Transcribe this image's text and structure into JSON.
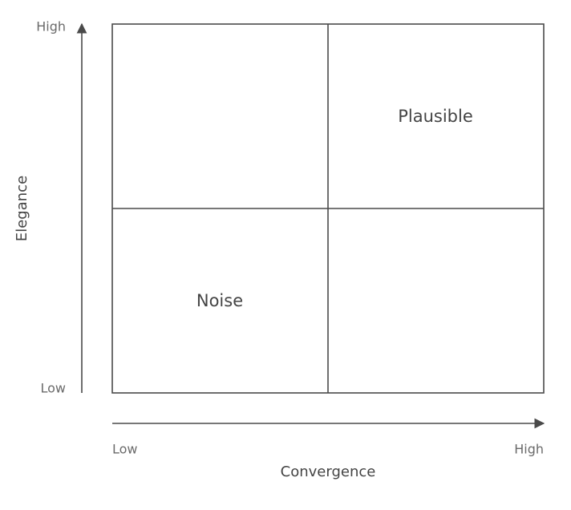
{
  "y_axis": {
    "label": "Elegance",
    "low": "Low",
    "high": "High"
  },
  "x_axis": {
    "label": "Convergence",
    "low": "Low",
    "high": "High"
  },
  "quadrants": {
    "top_right": "Plausible",
    "bottom_left": "Noise"
  }
}
